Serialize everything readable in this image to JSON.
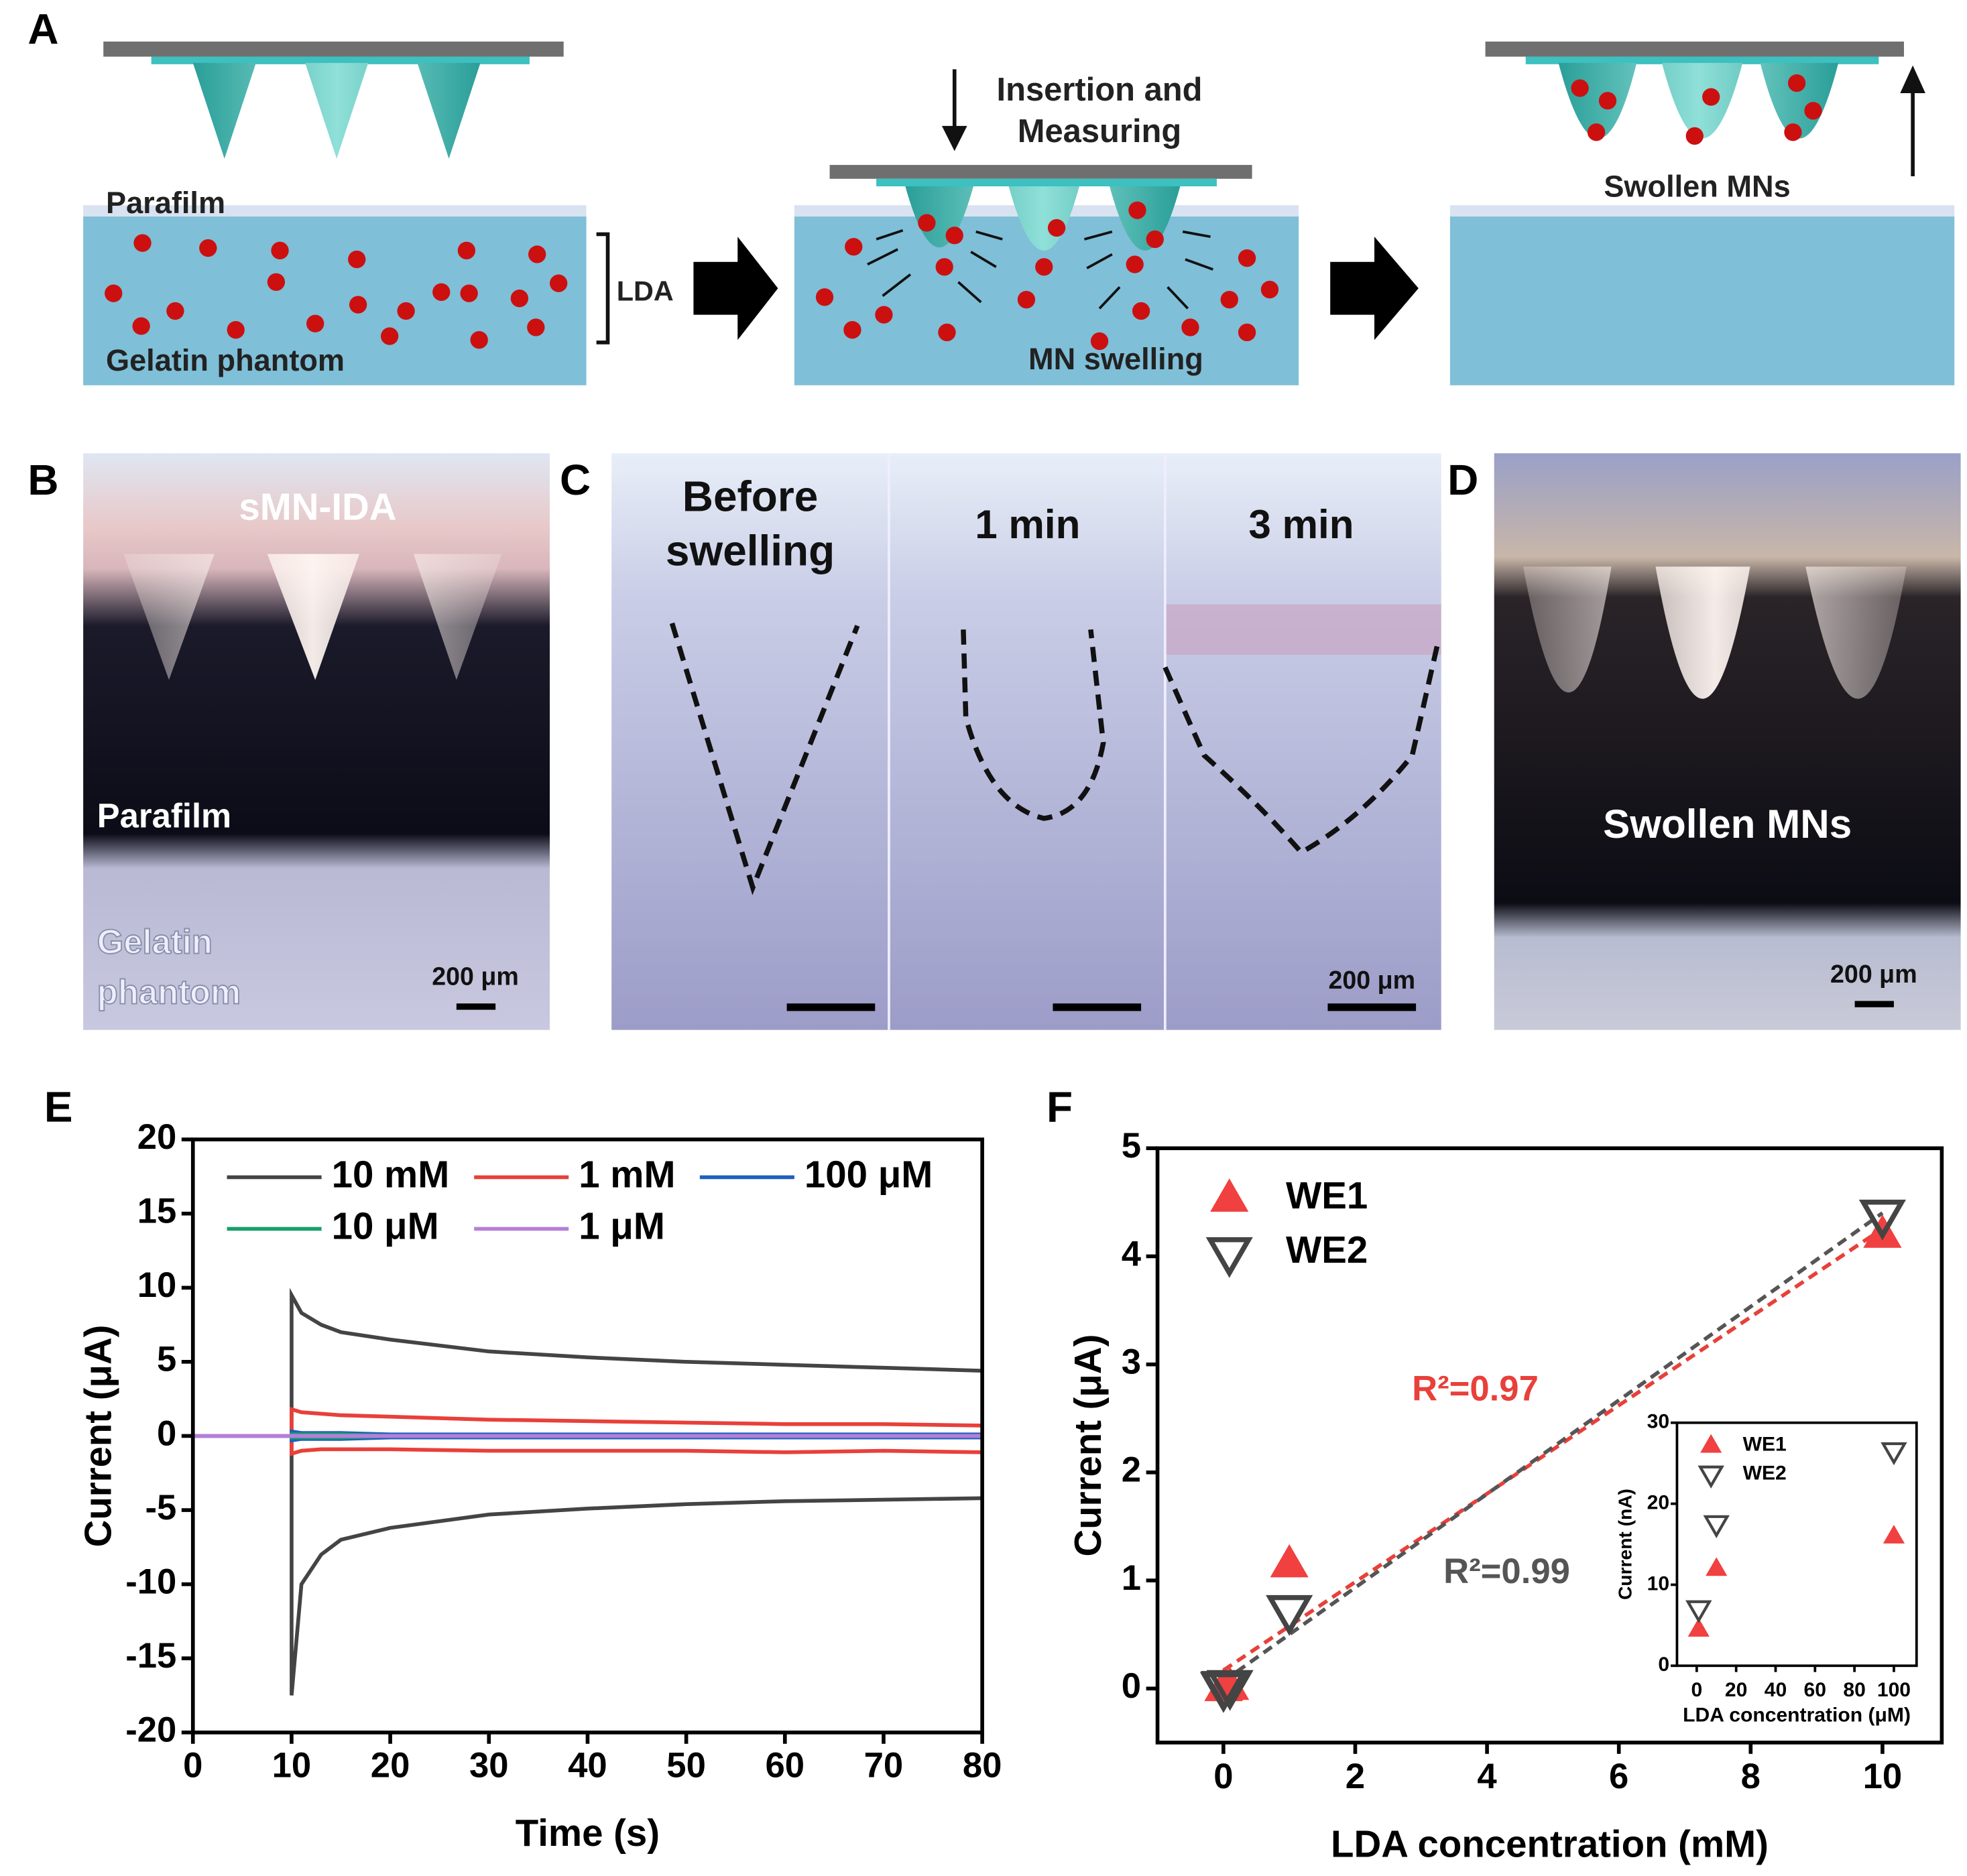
{
  "panel_a": {
    "label": "A",
    "parafilm": "Parafilm",
    "lda": "LDA",
    "gelatin": "Gelatin phantom",
    "insertion": "Insertion and",
    "measuring": "Measuring",
    "swelling": "MN swelling",
    "swollen": "Swollen MNs"
  },
  "panel_b": {
    "label": "B",
    "title": "sMN-IDA",
    "parafilm": "Parafilm",
    "gelatin_1": "Gelatin",
    "gelatin_2": "phantom",
    "scale": "200 μm"
  },
  "panel_c": {
    "label": "C",
    "before_1": "Before",
    "before_2": "swelling",
    "t1": "1 min",
    "t3": "3 min",
    "scale": "200 μm"
  },
  "panel_d": {
    "label": "D",
    "title": "Swollen MNs",
    "scale": "200 μm"
  },
  "chart_data": [
    {
      "type": "line",
      "panel_label": "E",
      "x_label": "Time (s)",
      "y_label": "Current (μA)",
      "x": [
        0,
        10,
        10,
        11,
        13,
        15,
        20,
        30,
        40,
        50,
        60,
        70,
        80
      ],
      "series": [
        {
          "name": "10 mM",
          "color": "#444444",
          "values": [
            0,
            0,
            9.5,
            8.3,
            7.5,
            7,
            6.5,
            5.7,
            5.3,
            5,
            4.8,
            4.6,
            4.4
          ],
          "values_lower": [
            0,
            0,
            -17.5,
            -10,
            -8,
            -7,
            -6.2,
            -5.3,
            -4.9,
            -4.6,
            -4.4,
            -4.3,
            -4.2
          ]
        },
        {
          "name": "1 mM",
          "color": "#e8403a",
          "values": [
            0,
            0,
            1.8,
            1.6,
            1.5,
            1.4,
            1.3,
            1.1,
            1,
            0.9,
            0.8,
            0.8,
            0.7
          ],
          "values_lower": [
            0,
            0,
            -1.2,
            -1,
            -0.9,
            -0.9,
            -0.9,
            -1,
            -1,
            -1,
            -1.1,
            -1,
            -1.1
          ]
        },
        {
          "name": "100 μM",
          "color": "#1f5fbf",
          "values": [
            0,
            0,
            0.3,
            0.2,
            0.2,
            0.2,
            0.1,
            0.1,
            0.1,
            0.1,
            0.1,
            0.1,
            0.1
          ],
          "values_lower": [
            0,
            0,
            -0.3,
            -0.2,
            -0.2,
            -0.2,
            -0.1,
            -0.1,
            -0.1,
            -0.1,
            -0.1,
            -0.1,
            -0.1
          ]
        },
        {
          "name": "10 μM",
          "color": "#1a9e6a",
          "values": [
            0,
            0,
            0.1,
            0.1,
            0.1,
            0.1,
            0,
            0,
            0,
            0,
            0,
            0,
            0
          ],
          "values_lower": [
            0,
            0,
            -0.1,
            -0.1,
            -0.1,
            -0.1,
            0,
            0,
            0,
            0,
            0,
            0,
            0
          ]
        },
        {
          "name": "1 μM",
          "color": "#b57fd8",
          "values": [
            0,
            0,
            0,
            0,
            0,
            0,
            0,
            0,
            0,
            0,
            0,
            0,
            0
          ],
          "values_lower": [
            0,
            0,
            0,
            0,
            0,
            0,
            0,
            0,
            0,
            0,
            0,
            0,
            0
          ]
        }
      ],
      "xlim": [
        0,
        80
      ],
      "xticks": [
        0,
        10,
        20,
        30,
        40,
        50,
        60,
        70,
        80
      ],
      "ylim": [
        -20,
        20
      ],
      "yticks": [
        -20,
        -15,
        -10,
        -5,
        0,
        5,
        10,
        15,
        20
      ]
    },
    {
      "type": "scatter",
      "panel_label": "F",
      "x_label": "LDA concentration (mM)",
      "y_label": "Current (μA)",
      "x": [
        0.001,
        0.01,
        0.1,
        1,
        10
      ],
      "series": [
        {
          "name": "WE1",
          "color": "#f04040",
          "marker": "triangle-up",
          "filled": true,
          "values": [
            0.0045,
            0.012,
            0.016,
            1.15,
            4.2
          ]
        },
        {
          "name": "WE2",
          "color": "#444444",
          "marker": "triangle-down",
          "filled": false,
          "values": [
            0.007,
            0.0175,
            0.0265,
            0.72,
            4.38
          ]
        }
      ],
      "fit": true,
      "annotations": [
        {
          "text": "R²=0.97",
          "color": "#e8403a"
        },
        {
          "text": "R²=0.99",
          "color": "#555555"
        }
      ],
      "xlim": [
        -1,
        10.9
      ],
      "xticks": [
        0,
        2,
        4,
        6,
        8,
        10
      ],
      "ylim": [
        -0.5,
        5
      ],
      "yticks": [
        0,
        1,
        2,
        3,
        4,
        5
      ]
    },
    {
      "type": "scatter",
      "x_label": "LDA concentration (μM)",
      "y_label": "Current (nA)",
      "x": [
        1,
        10,
        100
      ],
      "series": [
        {
          "name": "WE1",
          "color": "#f04040",
          "marker": "triangle-up",
          "filled": true,
          "values": [
            4.5,
            12,
            16
          ]
        },
        {
          "name": "WE2",
          "color": "#444444",
          "marker": "triangle-down",
          "filled": false,
          "values": [
            7,
            17.5,
            26.5
          ]
        }
      ],
      "fit": false,
      "xlim": [
        -10,
        111.5
      ],
      "xticks": [
        0,
        20,
        40,
        60,
        80,
        100
      ],
      "ylim": [
        0,
        30
      ],
      "yticks": [
        0,
        10,
        20,
        30
      ]
    }
  ]
}
